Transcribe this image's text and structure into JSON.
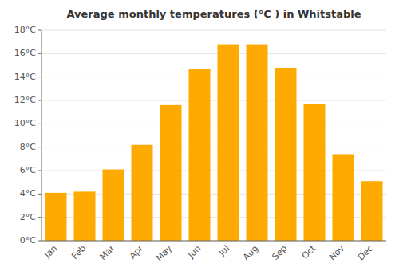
{
  "chart_data": {
    "type": "bar",
    "title": "Average monthly temperatures (°C ) in Whitstable",
    "categories": [
      "Jan",
      "Feb",
      "Mar",
      "Apr",
      "May",
      "Jun",
      "Jul",
      "Aug",
      "Sep",
      "Oct",
      "Nov",
      "Dec"
    ],
    "values": [
      4.1,
      4.2,
      6.1,
      8.2,
      11.6,
      14.7,
      16.8,
      16.8,
      14.8,
      11.7,
      7.4,
      5.1
    ],
    "color": "#FFAA00",
    "ylim": [
      0,
      18
    ],
    "yticks": [
      {
        "value": 0,
        "label": "0°C"
      },
      {
        "value": 2,
        "label": "2°C"
      },
      {
        "value": 4,
        "label": "4°C"
      },
      {
        "value": 6,
        "label": "6°C"
      },
      {
        "value": 8,
        "label": "8°C"
      },
      {
        "value": 10,
        "label": "10°C"
      },
      {
        "value": 12,
        "label": "12°C"
      },
      {
        "value": 14,
        "label": "14°C"
      },
      {
        "value": 16,
        "label": "16°C"
      },
      {
        "value": 18,
        "label": "18°C"
      }
    ],
    "grid": true
  }
}
